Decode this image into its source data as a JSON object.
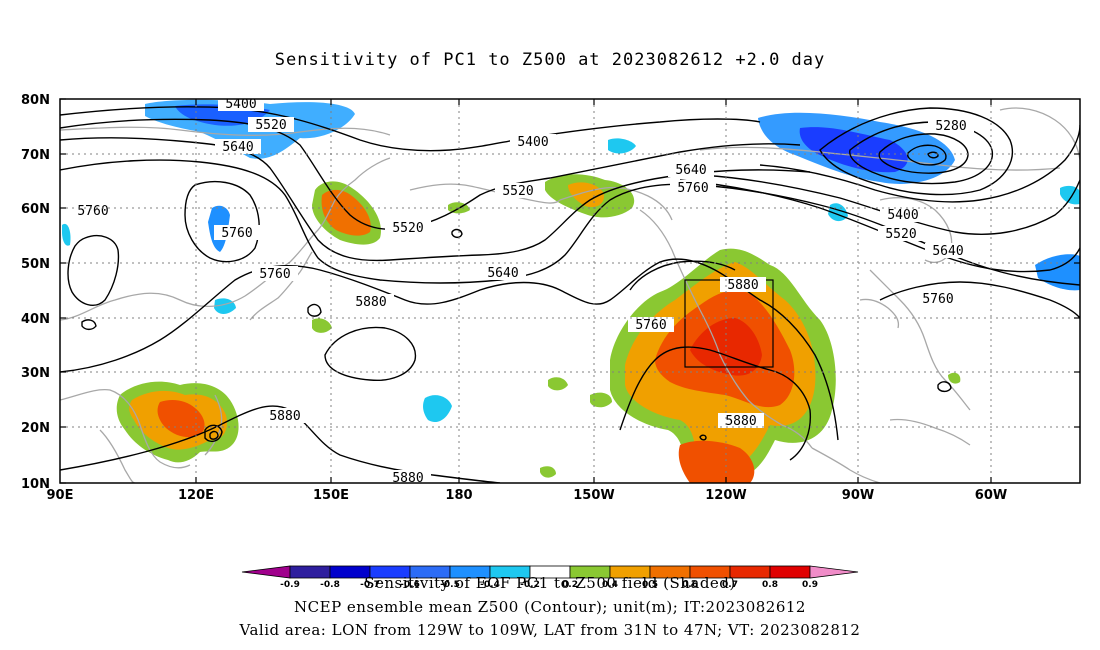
{
  "title": "Sensitivity of PC1 to Z500 at 2023082612 +2.0 day",
  "axes": {
    "lat_labels": [
      "80N",
      "70N",
      "60N",
      "50N",
      "40N",
      "30N",
      "20N",
      "10N"
    ],
    "lon_labels": [
      "90E",
      "120E",
      "150E",
      "180",
      "150W",
      "120W",
      "90W",
      "60W"
    ]
  },
  "contour_labels": {
    "l5400a": "5400",
    "l5520a": "5520",
    "l5640a": "5640",
    "l5760a": "5760",
    "l5760b": "5760",
    "l5760c": "5760",
    "l5880a": "5880",
    "l5880b": "5880",
    "l5880c": "5880",
    "l5520b": "5520",
    "l5400b": "5400",
    "l5520c": "5520",
    "l5640b": "5640",
    "l5640c": "5640",
    "l5760d": "5760",
    "l5760e": "5760",
    "l5880d": "5880",
    "l5880e": "5880",
    "l5280": "5280",
    "l5400c": "5400",
    "l5520d": "5520",
    "l5640d": "5640",
    "l5760f": "5760"
  },
  "colorbar": {
    "colors": [
      "#2e1e9e",
      "#0000cc",
      "#1a3dff",
      "#2c6cf6",
      "#1e90ff",
      "#1ec8f0",
      "#ffffff",
      "#8ac832",
      "#f0a000",
      "#f07000",
      "#f05000",
      "#e82800",
      "#e00000"
    ],
    "end_low": "#a0008c",
    "end_high": "#f08cc8",
    "tick_labels": [
      "-0.9",
      "-0.8",
      "-0.7",
      "-0.6",
      "-0.5",
      "-0.4",
      "-0.2",
      "0.2",
      "0.4",
      "0.5",
      "0.6",
      "0.7",
      "0.8",
      "0.9"
    ]
  },
  "footer": {
    "line1": "Sensitivity of EOF PC1 to Z500 field (Shaded)",
    "line2": "NCEP ensemble mean Z500 (Contour); unit(m); IT:2023082612",
    "line3": "Valid area: LON from 129W to 109W, LAT from 31N to 47N; VT: 2023082812"
  },
  "colors": {
    "land_outline": "#a8a8a8",
    "positive_low": "#8ac832",
    "positive_mid": "#f08c00",
    "positive_high": "#e82800",
    "negative_low": "#1ec8f0",
    "negative_mid": "#1e90ff",
    "negative_high": "#1a3dff"
  }
}
